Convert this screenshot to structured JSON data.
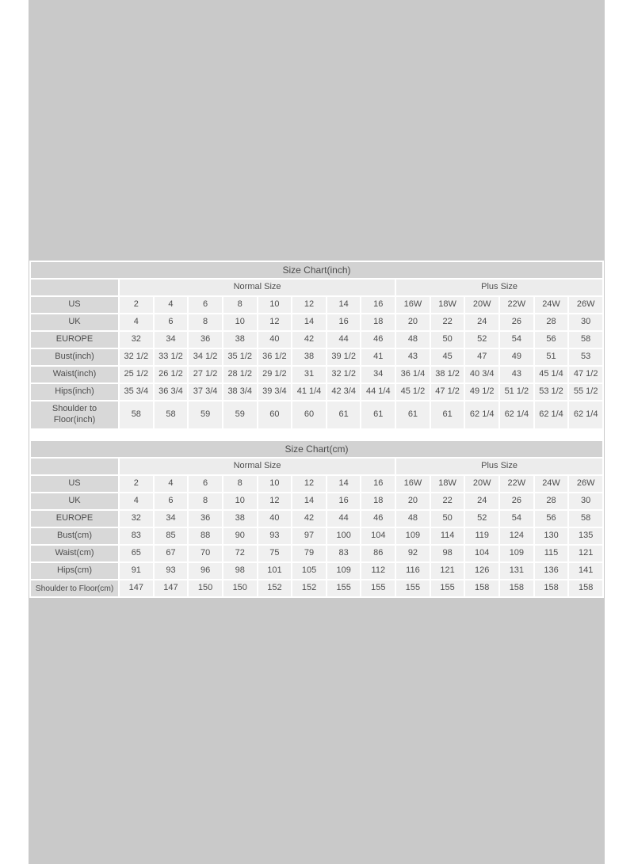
{
  "colors": {
    "page_background": "#ffffff",
    "photo_background": "#c9c9c9",
    "title_row": "#d2d2d2",
    "label_cell": "#d8d8d8",
    "group_cell": "#ececec",
    "data_cell": "#f0f0f0",
    "text": "#4d4d4d"
  },
  "chart_data": [
    {
      "type": "table",
      "title": "Size Chart(inch)",
      "column_groups": [
        {
          "label": "",
          "span": 1
        },
        {
          "label": "Normal Size",
          "span": 8
        },
        {
          "label": "Plus Size",
          "span": 6
        }
      ],
      "rows": [
        {
          "label": "US",
          "values": [
            "2",
            "4",
            "6",
            "8",
            "10",
            "12",
            "14",
            "16",
            "16W",
            "18W",
            "20W",
            "22W",
            "24W",
            "26W"
          ]
        },
        {
          "label": "UK",
          "values": [
            "4",
            "6",
            "8",
            "10",
            "12",
            "14",
            "16",
            "18",
            "20",
            "22",
            "24",
            "26",
            "28",
            "30"
          ]
        },
        {
          "label": "EUROPE",
          "values": [
            "32",
            "34",
            "36",
            "38",
            "40",
            "42",
            "44",
            "46",
            "48",
            "50",
            "52",
            "54",
            "56",
            "58"
          ]
        },
        {
          "label": "Bust(inch)",
          "values": [
            "32 1/2",
            "33 1/2",
            "34 1/2",
            "35 1/2",
            "36 1/2",
            "38",
            "39 1/2",
            "41",
            "43",
            "45",
            "47",
            "49",
            "51",
            "53"
          ]
        },
        {
          "label": "Waist(inch)",
          "values": [
            "25 1/2",
            "26 1/2",
            "27 1/2",
            "28 1/2",
            "29 1/2",
            "31",
            "32 1/2",
            "34",
            "36 1/4",
            "38 1/2",
            "40 3/4",
            "43",
            "45 1/4",
            "47 1/2"
          ]
        },
        {
          "label": "Hips(inch)",
          "values": [
            "35 3/4",
            "36 3/4",
            "37 3/4",
            "38 3/4",
            "39 3/4",
            "41 1/4",
            "42 3/4",
            "44 1/4",
            "45 1/2",
            "47 1/2",
            "49 1/2",
            "51 1/2",
            "53 1/2",
            "55 1/2"
          ]
        },
        {
          "label": "Shoulder to Floor(inch)",
          "two_line_label": true,
          "values": [
            "58",
            "58",
            "59",
            "59",
            "60",
            "60",
            "61",
            "61",
            "61",
            "61",
            "62 1/4",
            "62 1/4",
            "62 1/4",
            "62 1/4"
          ]
        }
      ]
    },
    {
      "type": "table",
      "title": "Size Chart(cm)",
      "column_groups": [
        {
          "label": "",
          "span": 1
        },
        {
          "label": "Normal Size",
          "span": 8
        },
        {
          "label": "Plus Size",
          "span": 6
        }
      ],
      "rows": [
        {
          "label": "US",
          "values": [
            "2",
            "4",
            "6",
            "8",
            "10",
            "12",
            "14",
            "16",
            "16W",
            "18W",
            "20W",
            "22W",
            "24W",
            "26W"
          ]
        },
        {
          "label": "UK",
          "values": [
            "4",
            "6",
            "8",
            "10",
            "12",
            "14",
            "16",
            "18",
            "20",
            "22",
            "24",
            "26",
            "28",
            "30"
          ]
        },
        {
          "label": "EUROPE",
          "values": [
            "32",
            "34",
            "36",
            "38",
            "40",
            "42",
            "44",
            "46",
            "48",
            "50",
            "52",
            "54",
            "56",
            "58"
          ]
        },
        {
          "label": "Bust(cm)",
          "values": [
            "83",
            "85",
            "88",
            "90",
            "93",
            "97",
            "100",
            "104",
            "109",
            "114",
            "119",
            "124",
            "130",
            "135"
          ]
        },
        {
          "label": "Waist(cm)",
          "values": [
            "65",
            "67",
            "70",
            "72",
            "75",
            "79",
            "83",
            "86",
            "92",
            "98",
            "104",
            "109",
            "115",
            "121"
          ]
        },
        {
          "label": "Hips(cm)",
          "values": [
            "91",
            "93",
            "96",
            "98",
            "101",
            "105",
            "109",
            "112",
            "116",
            "121",
            "126",
            "131",
            "136",
            "141"
          ]
        },
        {
          "label": "Shoulder to Floor(cm)",
          "values": [
            "147",
            "147",
            "150",
            "150",
            "152",
            "152",
            "155",
            "155",
            "155",
            "155",
            "158",
            "158",
            "158",
            "158"
          ]
        }
      ]
    }
  ]
}
